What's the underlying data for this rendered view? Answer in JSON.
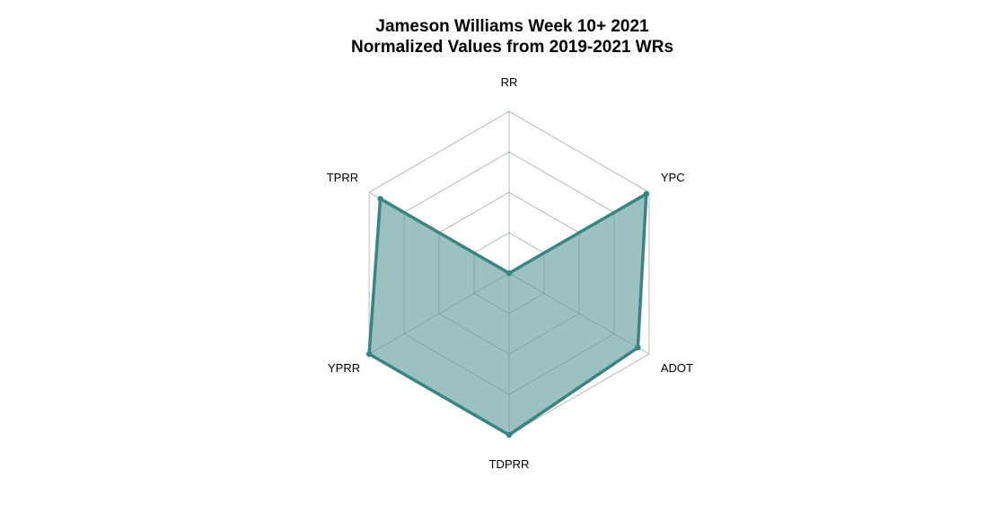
{
  "chart_data": {
    "type": "radar",
    "title": "Jameson Williams Week 10+ 2021",
    "subtitle": "Normalized Values from 2019-2021 WRs",
    "axes": [
      "RR",
      "YPC",
      "ADOT",
      "TDPRR",
      "YPRR",
      "TPRR"
    ],
    "range": [
      0,
      1
    ],
    "grid_levels": 4,
    "grid": true,
    "series": [
      {
        "values": [
          0.0,
          0.98,
          0.92,
          1.0,
          1.0,
          0.92
        ]
      }
    ],
    "colors": {
      "line": "#3a8484",
      "fill": "#9bc1c1",
      "grid": "#c0c0c0",
      "inner_grid": "#7fa4a4"
    }
  }
}
